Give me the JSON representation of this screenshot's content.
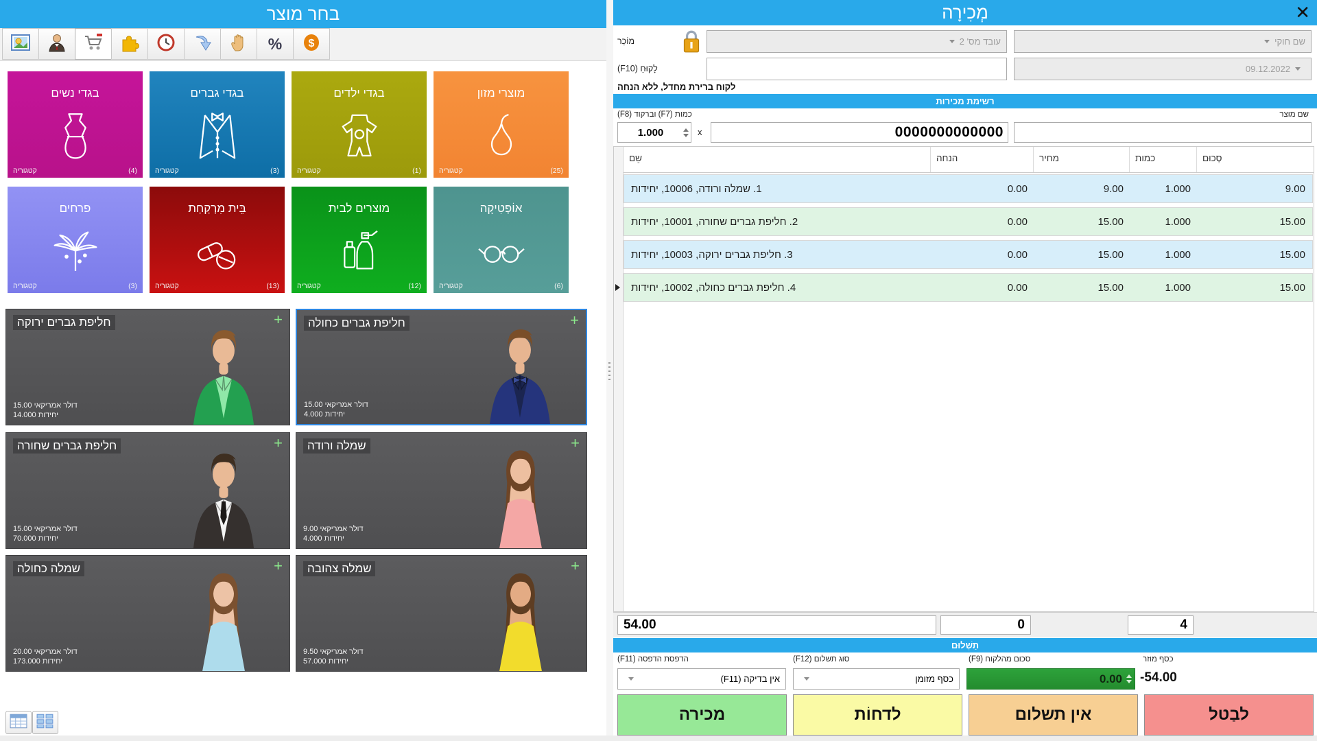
{
  "left_panel": {
    "title": "בחר מוצר",
    "toolbar": {
      "items": [
        {
          "icon": "photo",
          "active": false
        },
        {
          "icon": "person",
          "active": false
        },
        {
          "icon": "cart",
          "active": true
        },
        {
          "icon": "puzzle",
          "active": false
        },
        {
          "icon": "clock",
          "active": false
        },
        {
          "icon": "undo-arrow",
          "active": false
        },
        {
          "icon": "hand",
          "active": false
        },
        {
          "icon": "percent",
          "active": false
        },
        {
          "icon": "dollar",
          "active": false
        }
      ]
    },
    "category_label": "קטגוריה",
    "categories": [
      {
        "name": "בגדי נשים",
        "count": "(4)",
        "icon": "dress",
        "color_top": "#c5149a",
        "color_bottom": "#b8128a"
      },
      {
        "name": "בגדי גברים",
        "count": "(3)",
        "icon": "suit",
        "color_top": "#2184be",
        "color_bottom": "#0e6ea6"
      },
      {
        "name": "בגדי ילדים",
        "count": "(1)",
        "icon": "baby",
        "color_top": "#aba90f",
        "color_bottom": "#9c9a0b"
      },
      {
        "name": "מוצרי מזון",
        "count": "(25)",
        "icon": "pear",
        "color_top": "#f7933f",
        "color_bottom": "#f28432"
      },
      {
        "name": "פרחים",
        "count": "(3)",
        "icon": "flower",
        "color_top": "#9292f4",
        "color_bottom": "#7b7bea"
      },
      {
        "name": "בֵּית מִרְקַחַת",
        "count": "(13)",
        "icon": "pills",
        "color_top": "#8c0b0b",
        "color_bottom": "#c91111"
      },
      {
        "name": "מוצרים לבית",
        "count": "(12)",
        "icon": "cleaning",
        "color_top": "#0a9219",
        "color_bottom": "#0fae1f"
      },
      {
        "name": "אוֹפְּטִיקָה",
        "count": "(6)",
        "icon": "glasses",
        "color_top": "#4e948f",
        "color_bottom": "#579e99"
      }
    ],
    "currency_label": "דולר אמריקאי",
    "units_label": "יחידות",
    "add_label": "+",
    "products": [
      {
        "name": "חליפת גברים ירוקה",
        "price": "15.00",
        "stock": "14.000",
        "selected": false,
        "photo": {
          "style": "suit",
          "skin": "#e9ba96",
          "hair": "#8a5a2e",
          "outfit": "#23a050",
          "shirt": "#8fe8a8",
          "tie": "none",
          "accent": "#23a050"
        }
      },
      {
        "name": "חליפת גברים כחולה",
        "price": "15.00",
        "stock": "4.000",
        "selected": true,
        "photo": {
          "style": "suit",
          "skin": "#e7b591",
          "hair": "#7a4e28",
          "outfit": "#25347c",
          "shirt": "#1b2550",
          "tie": "bow",
          "accent": "#3a4d99"
        }
      },
      {
        "name": "חליפת גברים שחורה",
        "price": "15.00",
        "stock": "70.000",
        "selected": false,
        "photo": {
          "style": "suit",
          "skin": "#e9ba96",
          "hair": "#3e2e20",
          "outfit": "#35302e",
          "shirt": "#f4f4f4",
          "tie": "tie",
          "accent": "#1d1a18"
        }
      },
      {
        "name": "שמלה ורודה",
        "price": "9.00",
        "stock": "4.000",
        "selected": false,
        "photo": {
          "style": "dress",
          "skin": "#edbfa0",
          "hair": "#6e4526",
          "outfit": "#f4a7a5"
        }
      },
      {
        "name": "שמלה כחולה",
        "price": "20.00",
        "stock": "173.000",
        "selected": false,
        "photo": {
          "style": "dress",
          "skin": "#edc3a6",
          "hair": "#7b5130",
          "outfit": "#aedcec"
        }
      },
      {
        "name": "שמלה צהובה",
        "price": "9.50",
        "stock": "57.000",
        "selected": false,
        "photo": {
          "style": "dress",
          "skin": "#e3ab84",
          "hair": "#5e3d22",
          "outfit": "#f2dc2c"
        }
      }
    ],
    "view_buttons": [
      {
        "icon": "table-view"
      },
      {
        "icon": "grid-view"
      }
    ]
  },
  "right_panel": {
    "title": "מְכִירָה",
    "close_label": "✕",
    "fields": {
      "seller_label": "מוֹכֵר",
      "seller_value": "עובד מס' 2",
      "legal_name_value": "שם חוקי",
      "customer_label": "לָקוּחַ (F10)",
      "customer_value": "",
      "date_value": "09.12.2022"
    },
    "note": "לקוח ברירת מחדל, ללא הנחה",
    "sales": {
      "header": "רשימת מכירות",
      "qty_barcode_label": "כמות (F7) וברקוד (F8)",
      "product_name_label": "שם מוצר",
      "qty_value": "1.000",
      "multiply_label": "x",
      "barcode_value": "0000000000000",
      "product_name_value": "",
      "columns": [
        "שֵם",
        "הנחה",
        "מחיר",
        "כמות",
        "סְכוּם"
      ],
      "rows": [
        {
          "name": "1. שמלה ורודה, 10006, יחידות",
          "discount": "0.00",
          "price": "9.00",
          "qty": "1.000",
          "total": "9.00",
          "selected": false
        },
        {
          "name": "2. חליפת גברים שחורה, 10001, יחידות",
          "discount": "0.00",
          "price": "15.00",
          "qty": "1.000",
          "total": "15.00",
          "selected": false
        },
        {
          "name": "3. חליפת גברים ירוקה, 10003, יחידות",
          "discount": "0.00",
          "price": "15.00",
          "qty": "1.000",
          "total": "15.00",
          "selected": false
        },
        {
          "name": "4. חליפת גברים כחולה, 10002, יחידות",
          "discount": "0.00",
          "price": "15.00",
          "qty": "1.000",
          "total": "15.00",
          "selected": true
        }
      ],
      "totals": {
        "sum": "54.00",
        "discount": "0",
        "count": "4"
      }
    },
    "payment": {
      "header": "תַשְׁלוּם",
      "print_label": "הדפסת הדפסה (F11)",
      "print_value": "אין בדיקה (F11)",
      "type_label": "סוג תשלום (F12)",
      "type_value": "כסף מזומן",
      "amount_label": "סכום מהלקוח (F9)",
      "amount_value": "0.00",
      "amount_color": "#2da23b",
      "change_label": "כסף מוזר",
      "change_value": "-54.00",
      "buttons": [
        {
          "id": "sale",
          "label": "מכירה",
          "color": "#97e897"
        },
        {
          "id": "postpone",
          "label": "לדחוֹת",
          "color": "#fafaa5"
        },
        {
          "id": "no-payment",
          "label": "אין תשלום",
          "color": "#f7cf93"
        },
        {
          "id": "cancel",
          "label": "לבַטל",
          "color": "#f5908e"
        }
      ]
    }
  }
}
